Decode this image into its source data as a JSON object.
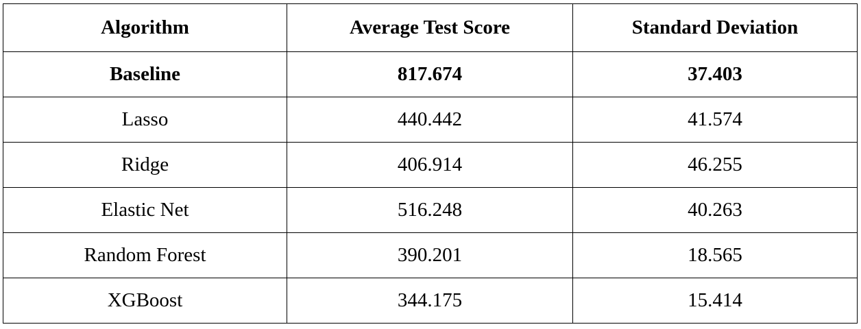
{
  "table": {
    "headers": [
      "Algorithm",
      "Average Test Score",
      "Standard Deviation"
    ],
    "rows": [
      {
        "algorithm": "Baseline",
        "score": "817.674",
        "std": "37.403",
        "bold": true
      },
      {
        "algorithm": "Lasso",
        "score": "440.442",
        "std": "41.574",
        "bold": false
      },
      {
        "algorithm": "Ridge",
        "score": "406.914",
        "std": "46.255",
        "bold": false
      },
      {
        "algorithm": "Elastic Net",
        "score": "516.248",
        "std": "40.263",
        "bold": false
      },
      {
        "algorithm": "Random Forest",
        "score": "390.201",
        "std": "18.565",
        "bold": false
      },
      {
        "algorithm": "XGBoost",
        "score": "344.175",
        "std": "15.414",
        "bold": false
      }
    ]
  }
}
